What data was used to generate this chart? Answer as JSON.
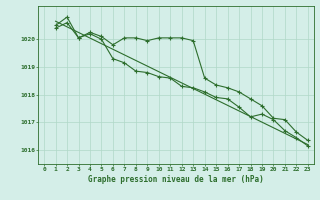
{
  "title": "Graphe pression niveau de la mer (hPa)",
  "background_color": "#d4eee8",
  "plot_bg_color": "#d4eee8",
  "line_color": "#2d6e2d",
  "grid_color": "#b0d8c8",
  "ylim": [
    1015.5,
    1021.2
  ],
  "xlim": [
    -0.5,
    23.5
  ],
  "yticks": [
    1016,
    1017,
    1018,
    1019,
    1020
  ],
  "xticks": [
    0,
    1,
    2,
    3,
    4,
    5,
    6,
    7,
    8,
    9,
    10,
    11,
    12,
    13,
    14,
    15,
    16,
    17,
    18,
    19,
    20,
    21,
    22,
    23
  ],
  "series1_x": [
    1,
    2,
    3,
    4,
    5,
    6,
    7,
    8,
    9,
    10,
    11,
    12,
    13,
    14,
    15,
    16,
    17,
    18,
    19,
    20,
    21,
    22,
    23
  ],
  "series1_y": [
    1020.5,
    1020.8,
    1020.05,
    1020.25,
    1020.1,
    1019.8,
    1020.05,
    1020.05,
    1019.95,
    1020.05,
    1020.05,
    1020.05,
    1019.95,
    1018.6,
    1018.35,
    1018.25,
    1018.1,
    1017.85,
    1017.6,
    1017.15,
    1017.1,
    1016.65,
    1016.35
  ],
  "series2_x": [
    1,
    2,
    3,
    4,
    5,
    6,
    7,
    8,
    9,
    10,
    11,
    12,
    13,
    14,
    15,
    16,
    17,
    18,
    19,
    20,
    21,
    22,
    23
  ],
  "series2_y": [
    1020.4,
    1020.6,
    1020.05,
    1020.2,
    1020.0,
    1019.3,
    1019.15,
    1018.85,
    1018.8,
    1018.65,
    1018.6,
    1018.3,
    1018.25,
    1018.1,
    1017.9,
    1017.85,
    1017.55,
    1017.2,
    1017.3,
    1017.1,
    1016.7,
    1016.45,
    1016.15
  ],
  "trend_x": [
    1,
    23
  ],
  "trend_y": [
    1020.65,
    1016.2
  ]
}
